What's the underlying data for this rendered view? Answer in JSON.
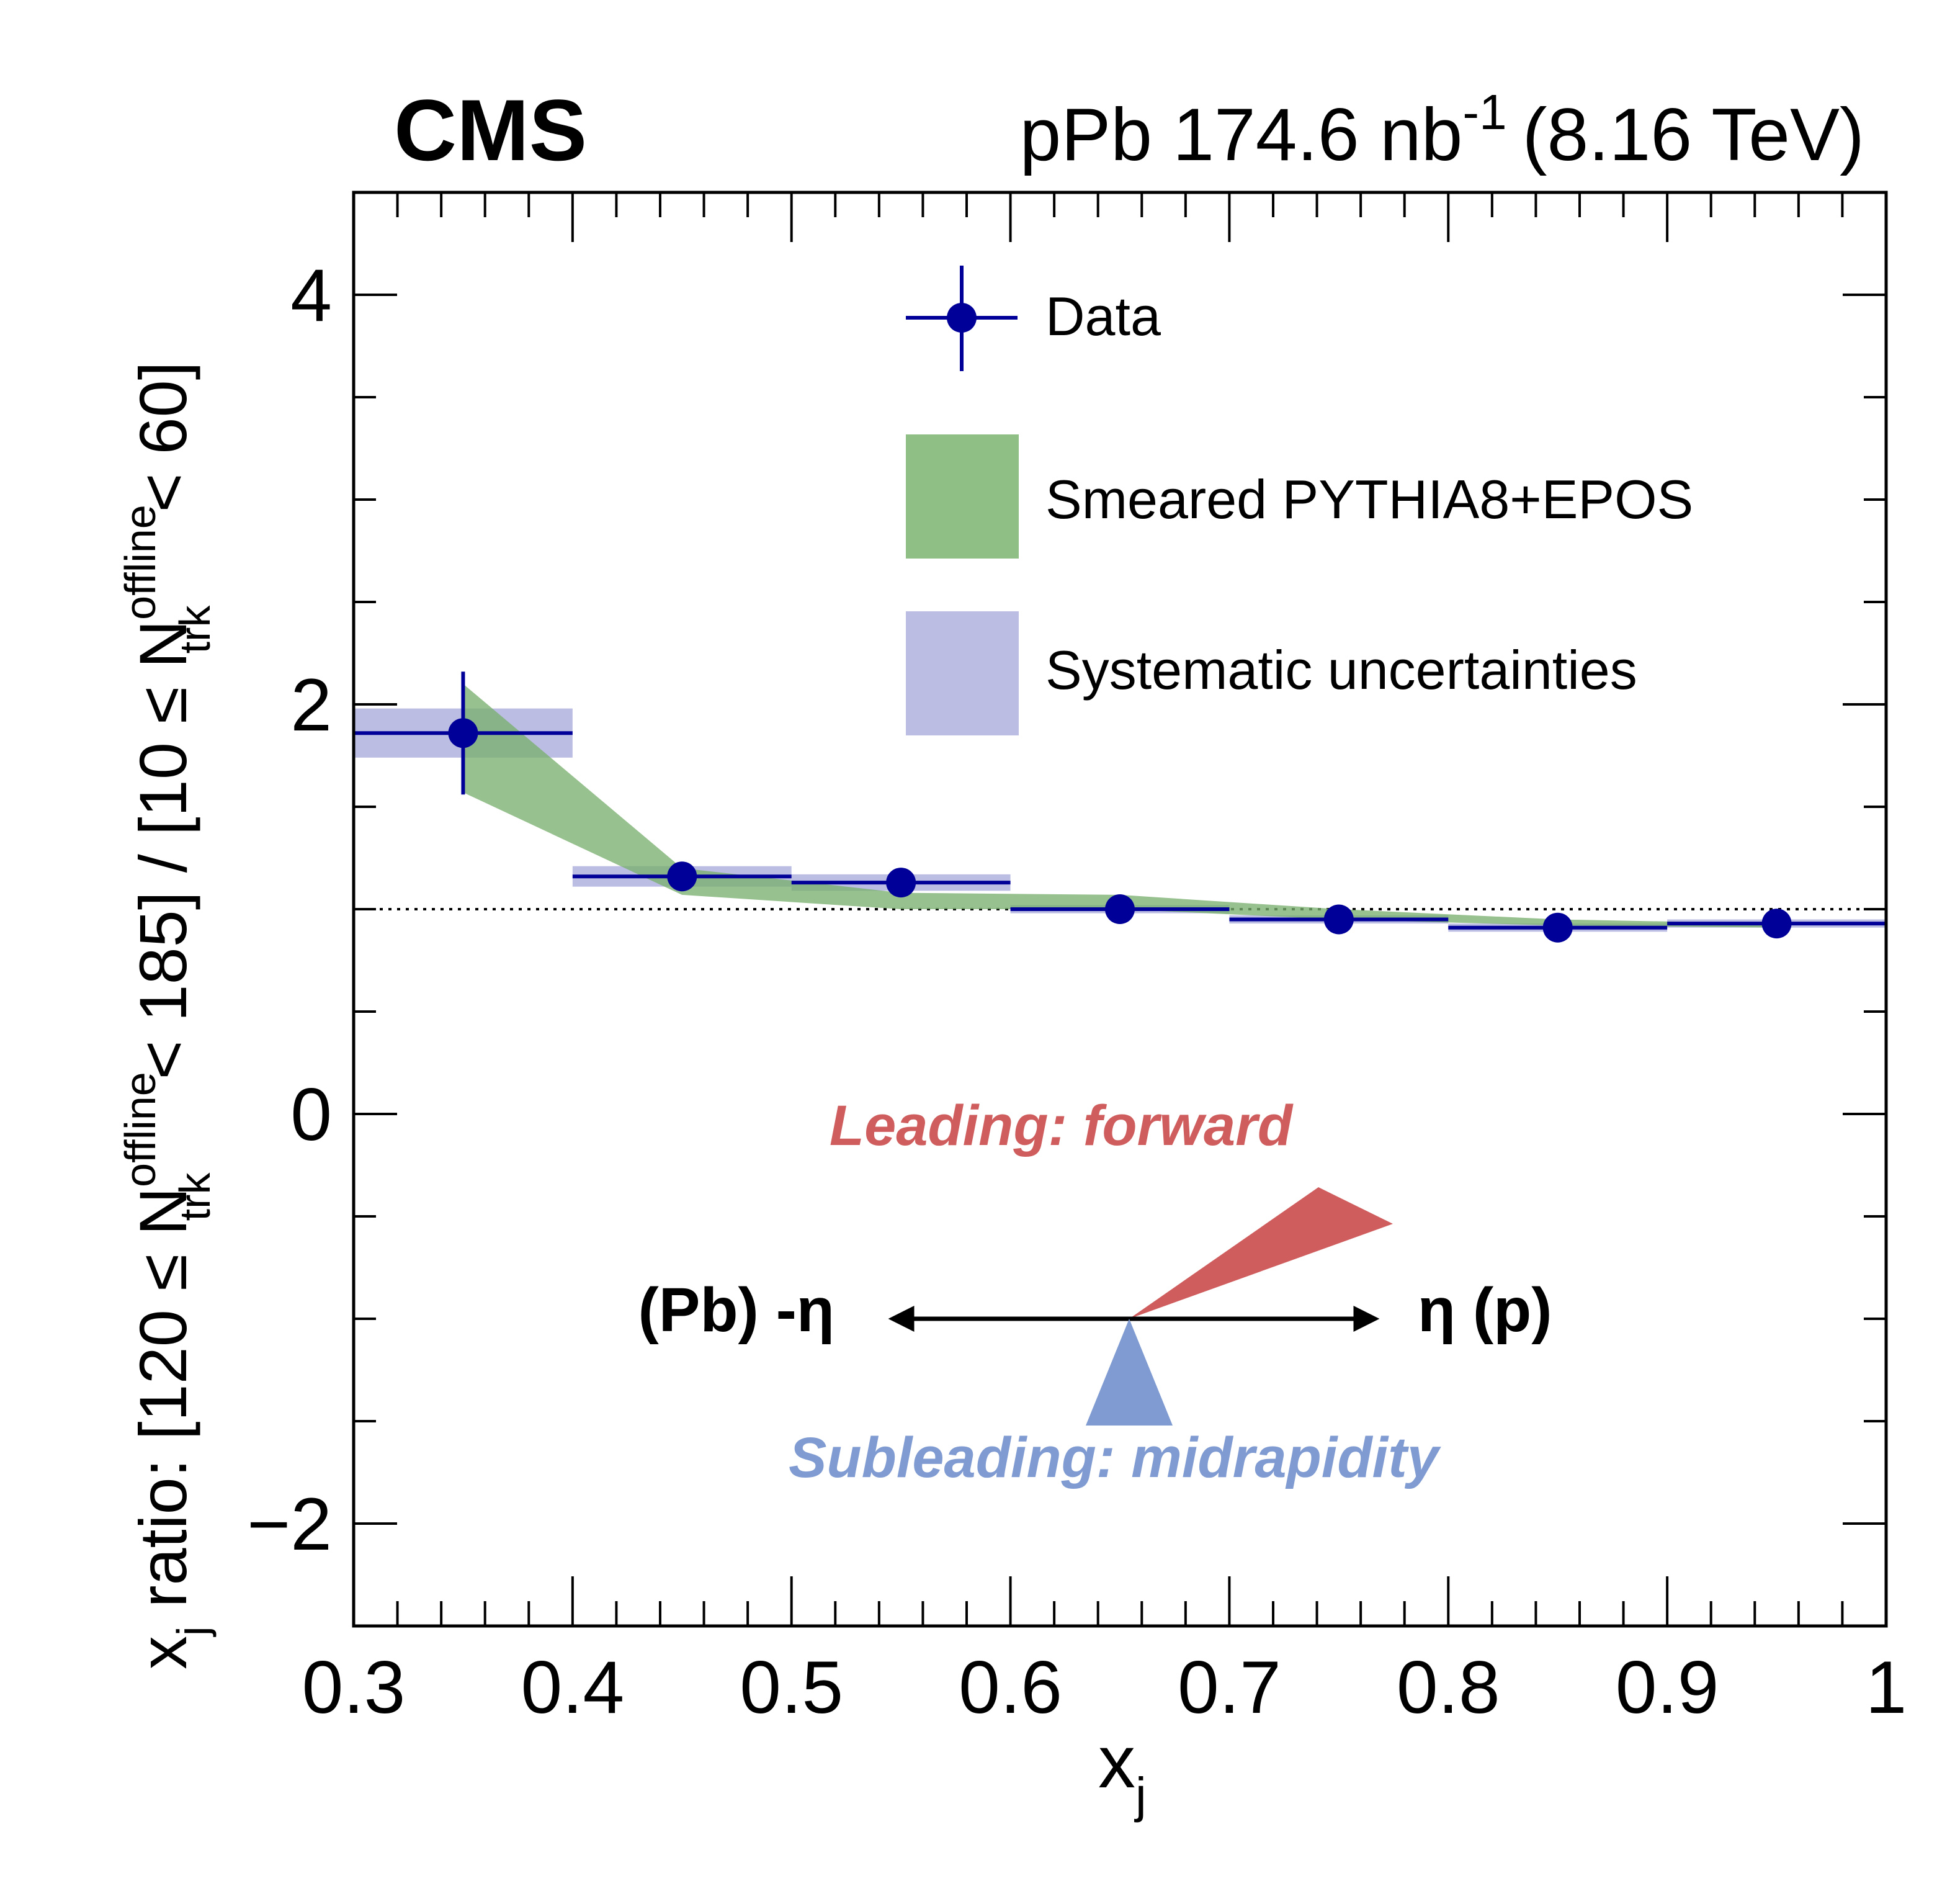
{
  "header": {
    "experiment": "CMS",
    "lumi_main": "pPb 174.6 nb",
    "lumi_sup": "-1",
    "energy": "(8.16 TeV)"
  },
  "chart_data": {
    "type": "scatter",
    "xlabel": "x",
    "xlabel_sub": "j",
    "ylabel": {
      "pre": "x",
      "pre_sub": "j",
      "part1": " ratio: [120 ≤ N",
      "sup1": "offline",
      "sub1": "trk",
      "part2": " < 185] / [10 ≤ N",
      "sup2": "offline",
      "sub2": "trk",
      "part3": " < 60]"
    },
    "xlim": [
      0.3,
      1.0
    ],
    "ylim": [
      -2.5,
      4.5
    ],
    "x_ticks": [
      0.3,
      0.4,
      0.5,
      0.6,
      0.7,
      0.8,
      0.9,
      1.0
    ],
    "x_tick_labels": [
      "0.3",
      "0.4",
      "0.5",
      "0.6",
      "0.7",
      "0.8",
      "0.9",
      "1"
    ],
    "y_ticks": [
      -2,
      0,
      2,
      4
    ],
    "y_tick_labels": [
      "−2",
      "0",
      "2",
      "4"
    ],
    "reference_line": 1.0,
    "series": [
      {
        "name": "Data",
        "color": "#000099",
        "bins": [
          {
            "xlo": 0.3,
            "xhi": 0.4,
            "y": 1.86,
            "stat": 0.3,
            "syst": 0.12
          },
          {
            "xlo": 0.4,
            "xhi": 0.5,
            "y": 1.16,
            "stat": 0.02,
            "syst": 0.05
          },
          {
            "xlo": 0.5,
            "xhi": 0.6,
            "y": 1.13,
            "stat": 0.02,
            "syst": 0.04
          },
          {
            "xlo": 0.6,
            "xhi": 0.7,
            "y": 1.0,
            "stat": 0.01,
            "syst": 0.02
          },
          {
            "xlo": 0.7,
            "xhi": 0.8,
            "y": 0.95,
            "stat": 0.01,
            "syst": 0.02
          },
          {
            "xlo": 0.8,
            "xhi": 0.9,
            "y": 0.91,
            "stat": 0.01,
            "syst": 0.02
          },
          {
            "xlo": 0.9,
            "xhi": 1.0,
            "y": 0.93,
            "stat": 0.01,
            "syst": 0.02
          }
        ]
      },
      {
        "name": "Smeared PYTHIA8+EPOS",
        "color": "#7ab06e",
        "band": [
          {
            "x": 0.35,
            "lo": 1.57,
            "hi": 2.1
          },
          {
            "x": 0.45,
            "lo": 1.07,
            "hi": 1.2
          },
          {
            "x": 0.55,
            "lo": 1.0,
            "hi": 1.08
          },
          {
            "x": 0.65,
            "lo": 1.0,
            "hi": 1.07
          },
          {
            "x": 0.75,
            "lo": 0.95,
            "hi": 1.0
          },
          {
            "x": 0.85,
            "lo": 0.92,
            "hi": 0.95
          },
          {
            "x": 0.95,
            "lo": 0.91,
            "hi": 0.93
          }
        ]
      },
      {
        "name": "Systematic uncertainties",
        "color": "#b4b4e0"
      }
    ],
    "legend_position": "top-right",
    "annotations": {
      "leading": "Leading: forward",
      "subleading": "Subleading: midrapidity",
      "left_axis": "(Pb) -η",
      "right_axis": "η (p)",
      "leading_color": "#d05d5d",
      "subleading_color": "#7f9bd1"
    }
  }
}
